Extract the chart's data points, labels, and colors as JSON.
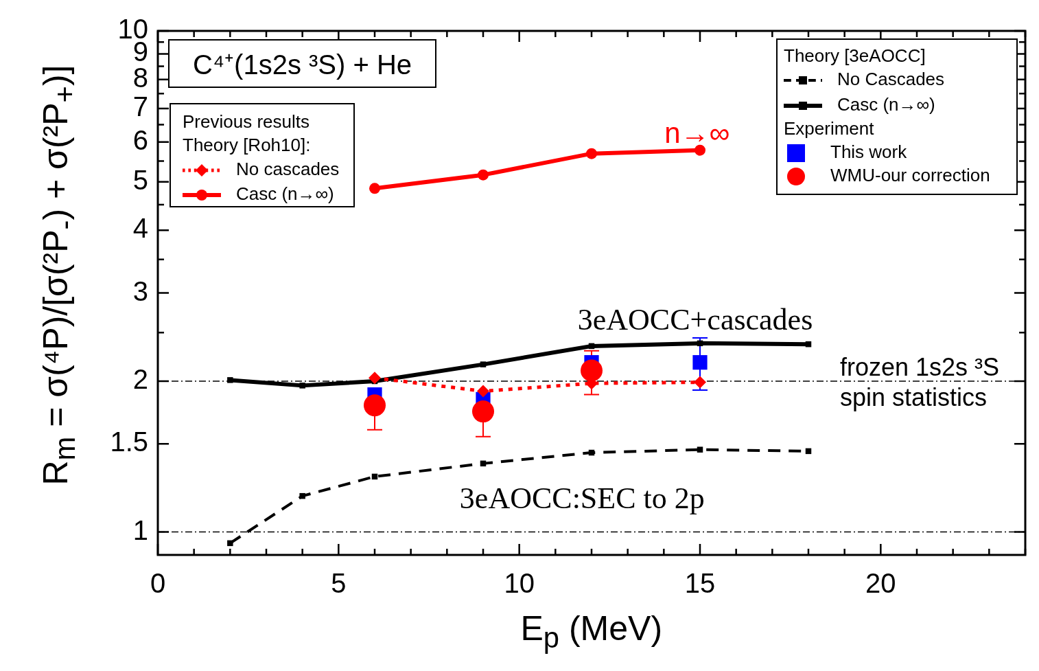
{
  "chart_data": {
    "type": "line",
    "title": "C⁴⁺(1s2s ³S) + He",
    "xlabel": "E$_{p}$ (MeV)",
    "ylabel": "R$_{m}$ = σ(⁴P)/[σ(²P$_{-}$) + σ(²P$_{+}$)]",
    "legend_title": "Theory [3eAOCC]",
    "annotations": [
      "Experiment",
      "Previous results",
      "Theory [Roh10]:",
      "3eAOCC+cascades",
      "3eAOCC:SEC to 2p",
      "n→∞"
    ],
    "x": [
      2,
      4,
      6,
      9,
      12,
      15,
      18
    ],
    "series": [
      {
        "name": "No Cascades",
        "color": "#000000",
        "line_style": "dashed",
        "marker": "square",
        "values": [
          0.95,
          1.18,
          1.29,
          1.37,
          1.44,
          1.46,
          1.45
        ]
      },
      {
        "name": "Casc (n→∞)",
        "color": "#000000",
        "line_style": "solid",
        "marker": "square",
        "values": [
          2.01,
          1.96,
          2.0,
          2.16,
          2.35,
          2.38,
          2.37
        ]
      },
      {
        "name": "This work",
        "type": "scatter",
        "color": "#0000ff",
        "marker": "square",
        "x": [
          6,
          9,
          12,
          15
        ],
        "values": [
          1.88,
          1.84,
          2.18,
          2.18
        ],
        "errors": [
          null,
          null,
          null,
          [
            1.92,
            2.44
          ]
        ]
      },
      {
        "name": "WMU-our correction",
        "type": "scatter",
        "color": "#ff0000",
        "marker": "circle",
        "x": [
          6,
          9,
          12
        ],
        "values": [
          1.79,
          1.74,
          2.1
        ],
        "errors": [
          [
            1.6,
            1.79
          ],
          [
            1.55,
            1.74
          ],
          [
            1.88,
            2.3
          ]
        ]
      },
      {
        "name": "No cascades",
        "color": "#ff0000",
        "line_style": "dotted",
        "marker": "diamond",
        "x": [
          6,
          9,
          12,
          15
        ],
        "values": [
          2.03,
          1.91,
          1.98,
          1.99
        ]
      },
      {
        "name": "Casc (n→∞)",
        "color": "#ff0000",
        "line_style": "solid",
        "marker": "circle",
        "x": [
          6,
          9,
          12,
          15
        ],
        "values": [
          4.85,
          5.16,
          5.69,
          5.78
        ]
      }
    ],
    "xlim": [
      0,
      24
    ],
    "xticks": [
      0,
      {
        "value": 1,
        "label": null
      },
      {
        "value": 2,
        "label": null
      },
      {
        "value": 3,
        "label": null
      },
      {
        "value": 4,
        "label": null
      },
      5,
      {
        "value": 6,
        "label": null
      },
      {
        "value": 7,
        "label": null
      },
      {
        "value": 8,
        "label": null
      },
      {
        "value": 9,
        "label": null
      },
      10,
      {
        "value": 11,
        "label": null
      },
      {
        "value": 12,
        "label": null
      },
      {
        "value": 13,
        "label": null
      },
      {
        "value": 14,
        "label": null
      },
      15,
      {
        "value": 16,
        "label": null
      },
      {
        "value": 17,
        "label": null
      },
      {
        "value": 18,
        "label": null
      },
      {
        "value": 19,
        "label": null
      },
      20,
      {
        "value": 21,
        "label": null
      },
      {
        "value": 22,
        "label": null
      },
      {
        "value": 23,
        "label": null
      },
      {
        "value": 24,
        "label": null
      }
    ],
    "ylim": [
      0.9,
      10
    ],
    "log": "y",
    "yticks": [
      1,
      1.5,
      2,
      {
        "value": 2.5,
        "label": null
      },
      3,
      {
        "value": 3.5,
        "label": null
      },
      4,
      {
        "value": 4.5,
        "label": null
      },
      5,
      {
        "value": 5.5,
        "label": null
      },
      6,
      {
        "value": 6.5,
        "label": null
      },
      7,
      {
        "value": 7.5,
        "label": null
      },
      8,
      {
        "value": 8.5,
        "label": null
      },
      9,
      {
        "value": 9.5,
        "label": null
      },
      10
    ],
    "ref_lines": [
      {
        "axis": "y",
        "value": 2,
        "label": "frozen 1s2s ³S\nspin statistics",
        "line_style": "dashdot",
        "color": "#000000"
      },
      {
        "axis": "y",
        "value": 1,
        "line_style": "dashdot",
        "color": "#000000"
      }
    ],
    "grid": false,
    "legend": "top right"
  }
}
